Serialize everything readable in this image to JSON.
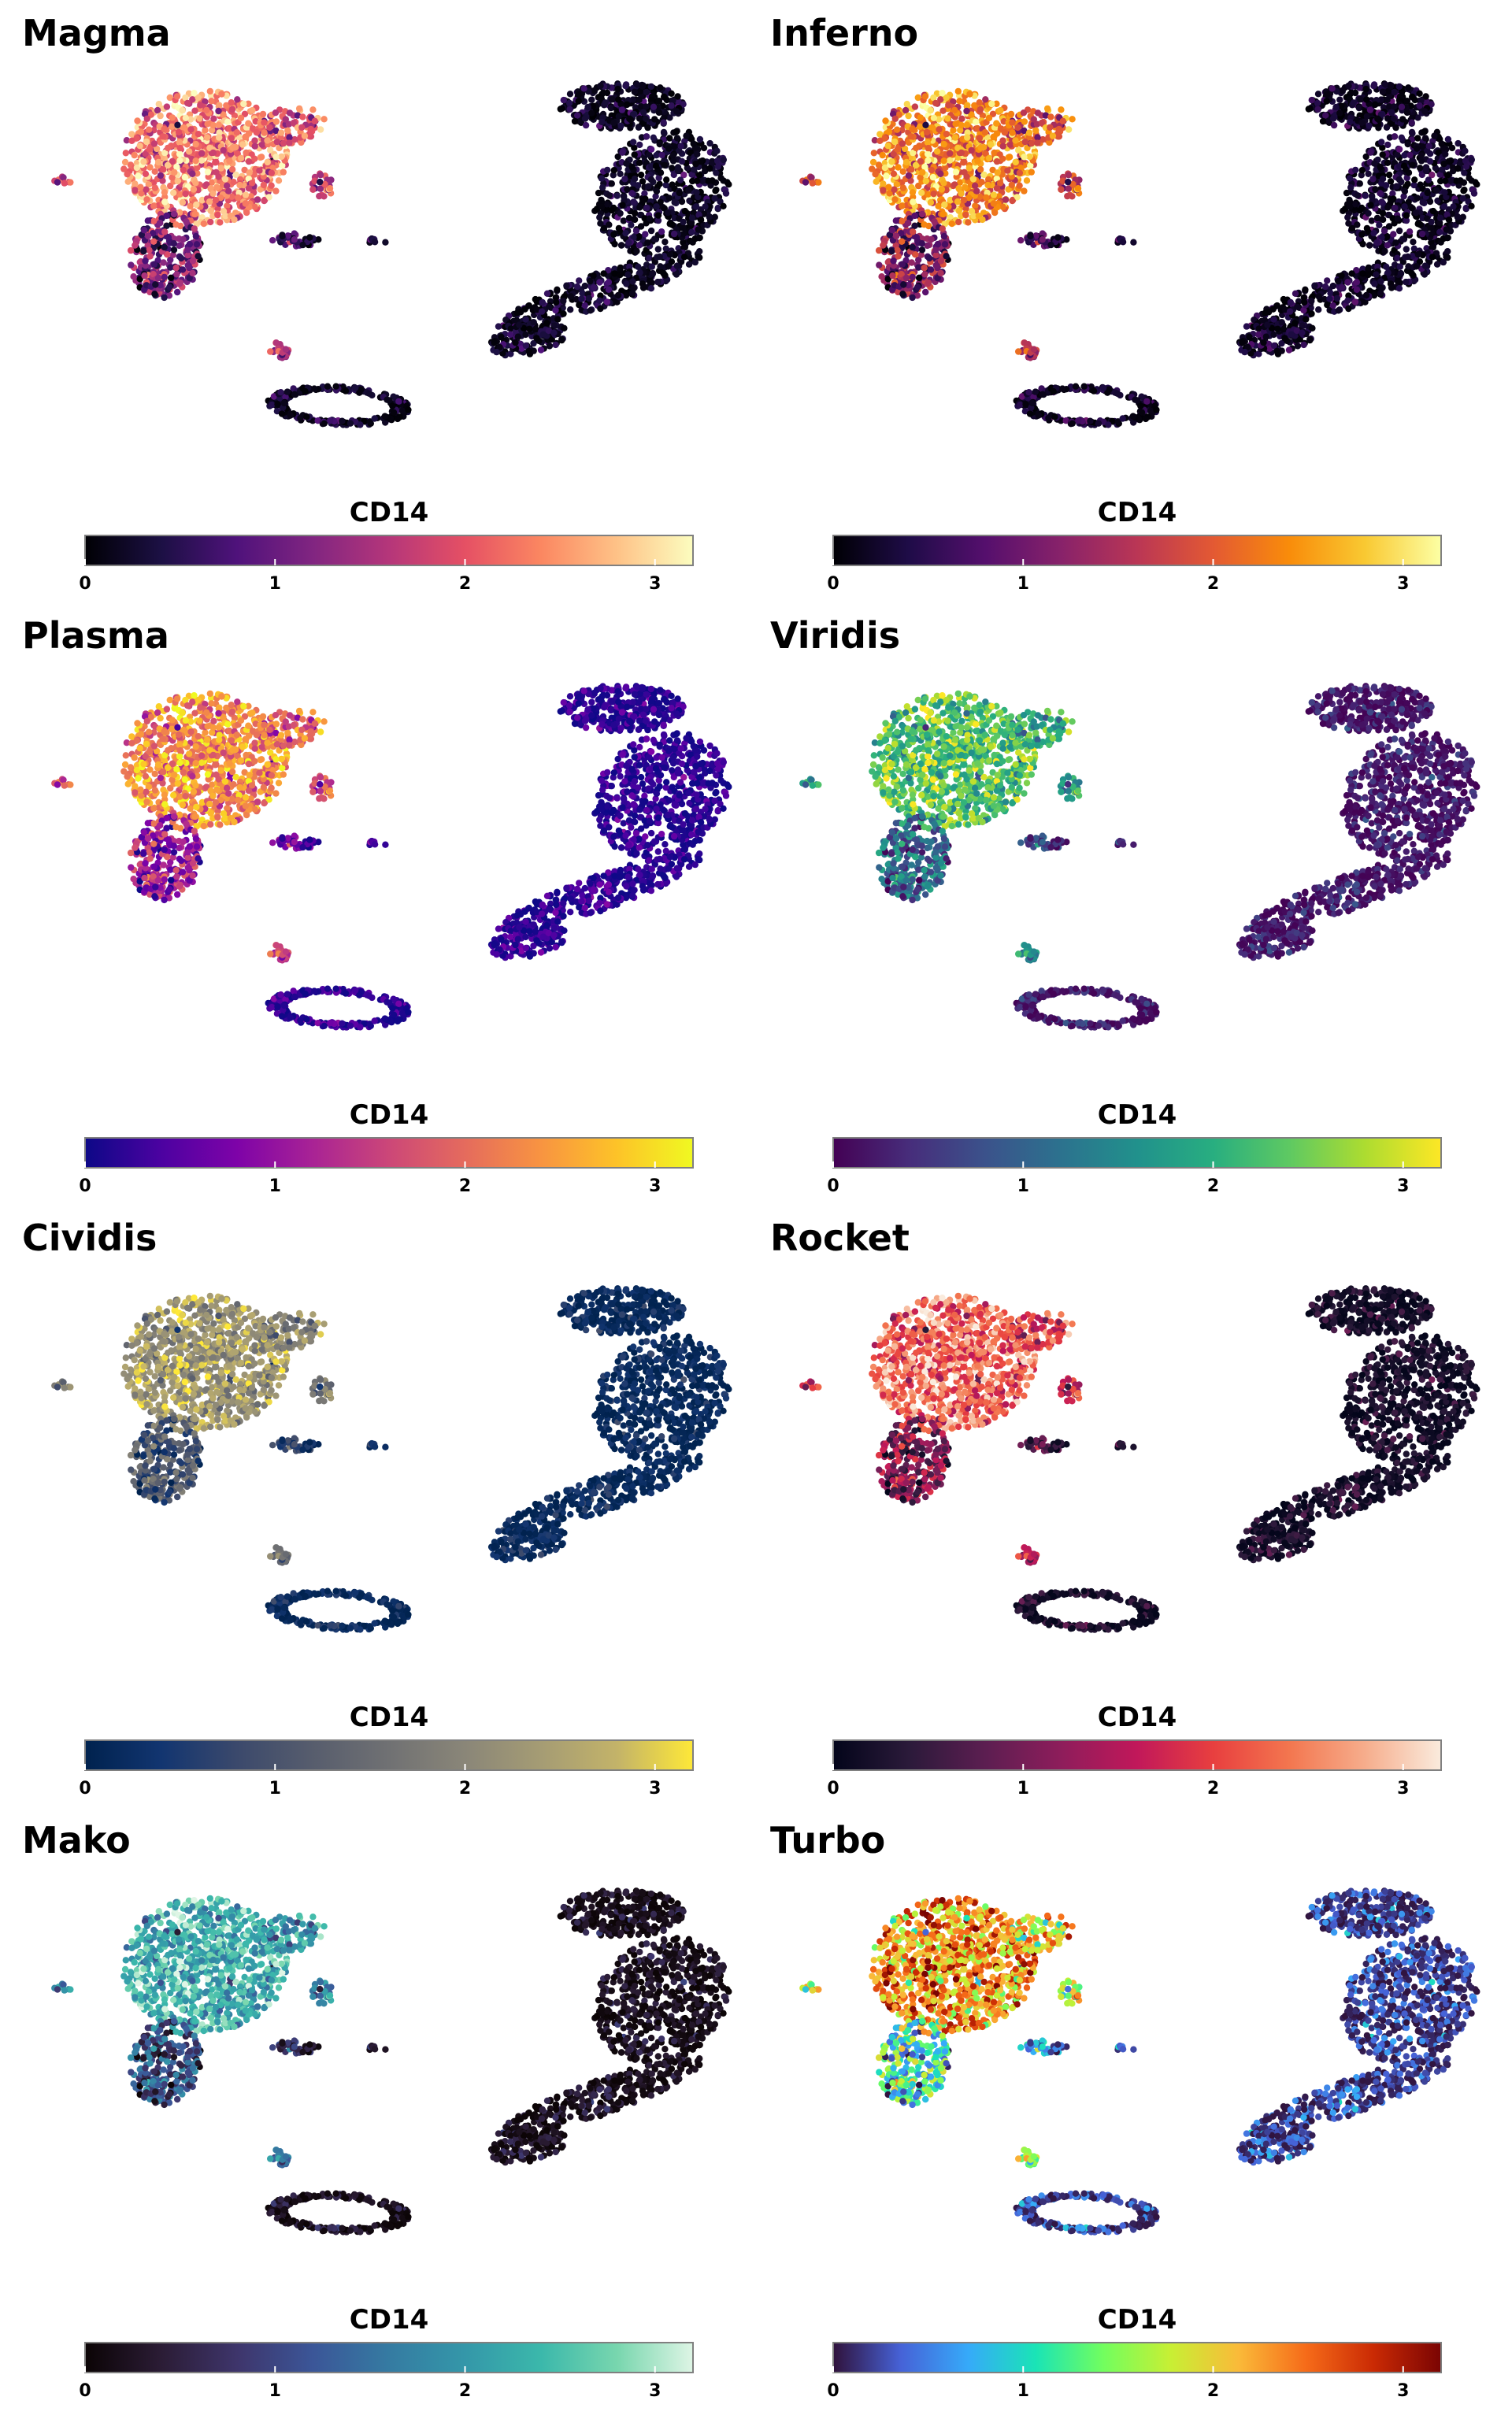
{
  "chart_data": [
    {
      "type": "scatter",
      "title": "Magma",
      "colorbar_label": "CD14",
      "colormap": "magma",
      "clim": [
        0,
        3.2
      ],
      "ticks": [
        0,
        1,
        2,
        3
      ],
      "stops": [
        "#000004",
        "#1c1044",
        "#4f127b",
        "#812581",
        "#b5367a",
        "#e55064",
        "#fb8761",
        "#fec287",
        "#fcfdbf"
      ]
    },
    {
      "type": "scatter",
      "title": "Inferno",
      "colorbar_label": "CD14",
      "colormap": "inferno",
      "clim": [
        0,
        3.2
      ],
      "ticks": [
        0,
        1,
        2,
        3
      ],
      "stops": [
        "#000004",
        "#1f0c48",
        "#550f6d",
        "#88226a",
        "#ba3655",
        "#e35933",
        "#f98c0a",
        "#f9c932",
        "#fcffa4"
      ]
    },
    {
      "type": "scatter",
      "title": "Plasma",
      "colorbar_label": "CD14",
      "colormap": "plasma",
      "clim": [
        0,
        3.2
      ],
      "ticks": [
        0,
        1,
        2,
        3
      ],
      "stops": [
        "#0d0887",
        "#4c02a1",
        "#7e03a8",
        "#a92395",
        "#cc4778",
        "#e56b5d",
        "#f89441",
        "#fdc328",
        "#f0f921"
      ]
    },
    {
      "type": "scatter",
      "title": "Viridis",
      "colorbar_label": "CD14",
      "colormap": "viridis",
      "clim": [
        0,
        3.2
      ],
      "ticks": [
        0,
        1,
        2,
        3
      ],
      "stops": [
        "#440154",
        "#472d7b",
        "#3b528b",
        "#2c728e",
        "#21918c",
        "#28ae80",
        "#5ec962",
        "#addc30",
        "#fde725"
      ]
    },
    {
      "type": "scatter",
      "title": "Cividis",
      "colorbar_label": "CD14",
      "colormap": "cividis",
      "clim": [
        0,
        3.2
      ],
      "ticks": [
        0,
        1,
        2,
        3
      ],
      "stops": [
        "#00224e",
        "#123570",
        "#3b496c",
        "#575d6d",
        "#707173",
        "#8a8678",
        "#a59c74",
        "#c3b369",
        "#fee838"
      ]
    },
    {
      "type": "scatter",
      "title": "Rocket",
      "colorbar_label": "CD14",
      "colormap": "rocket",
      "clim": [
        0,
        3.2
      ],
      "ticks": [
        0,
        1,
        2,
        3
      ],
      "stops": [
        "#03051a",
        "#2b1a3a",
        "#5c1e51",
        "#8e1d5b",
        "#c1185a",
        "#e83f3f",
        "#f3764f",
        "#f6ad8c",
        "#faebdd"
      ]
    },
    {
      "type": "scatter",
      "title": "Mako",
      "colorbar_label": "CD14",
      "colormap": "mako",
      "clim": [
        0,
        3.2
      ],
      "ticks": [
        0,
        1,
        2,
        3
      ],
      "stops": [
        "#0b0405",
        "#2b1c35",
        "#3e356b",
        "#3b5698",
        "#357ba2",
        "#3497a9",
        "#3bb8ab",
        "#78d6ae",
        "#def5e5"
      ]
    },
    {
      "type": "scatter",
      "title": "Turbo",
      "colorbar_label": "CD14",
      "colormap": "turbo",
      "clim": [
        0,
        3.2
      ],
      "ticks": [
        0,
        1,
        2,
        3
      ],
      "stops": [
        "#30123b",
        "#4662d7",
        "#36aaf9",
        "#1ae4b6",
        "#72fe5e",
        "#c8ef34",
        "#faba39",
        "#f66b19",
        "#ca2a04",
        "#7a0403"
      ]
    }
  ]
}
